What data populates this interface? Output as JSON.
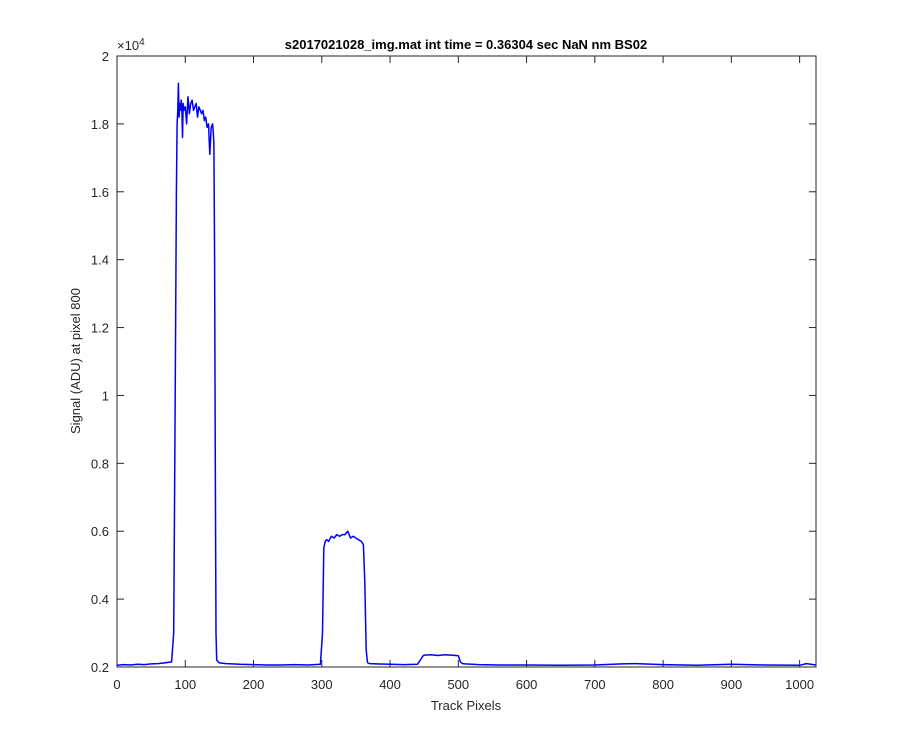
{
  "chart_data": {
    "type": "line",
    "title": "s2017021028_img.mat int time = 0.36304 sec  NaN nm BS02",
    "xlabel": "Track Pixels",
    "ylabel": "Signal (ADU) at pixel 800",
    "y_multiplier_label": "×10",
    "y_multiplier_exponent": "4",
    "xlim": [
      0,
      1024
    ],
    "ylim": [
      0.2,
      2.0
    ],
    "y_scale_note": "values in units of 10^4 ADU",
    "x_ticks": [
      0,
      100,
      200,
      300,
      400,
      500,
      600,
      700,
      800,
      900,
      1000
    ],
    "y_ticks": [
      0.2,
      0.4,
      0.6,
      0.8,
      1.0,
      1.2,
      1.4,
      1.6,
      1.8,
      2.0
    ],
    "y_tick_labels": [
      "0.2",
      "0.4",
      "0.6",
      "0.8",
      "1",
      "1.2",
      "1.4",
      "1.6",
      "1.8",
      "2"
    ],
    "grid": false,
    "line_color": "#0000ff",
    "series": [
      {
        "x": [
          0,
          10,
          20,
          30,
          40,
          50,
          60,
          70,
          80,
          83,
          85,
          87,
          88,
          89,
          90,
          91,
          92,
          93,
          94,
          95,
          96,
          97,
          98,
          100,
          102,
          104,
          106,
          108,
          110,
          112,
          114,
          116,
          118,
          120,
          122,
          124,
          126,
          128,
          130,
          132,
          134,
          136,
          138,
          140,
          141,
          142,
          143,
          144,
          145,
          146,
          150,
          160,
          180,
          200,
          220,
          240,
          260,
          280,
          298,
          301,
          303,
          305,
          307,
          310,
          314,
          318,
          322,
          326,
          330,
          334,
          338,
          342,
          346,
          350,
          354,
          358,
          361,
          363,
          365,
          367,
          370,
          380,
          400,
          420,
          440,
          446,
          448,
          450,
          460,
          470,
          480,
          490,
          500,
          503,
          506,
          510,
          530,
          560,
          600,
          650,
          700,
          740,
          760,
          800,
          850,
          900,
          950,
          1000,
          1010,
          1024
        ],
        "y": [
          0.205,
          0.207,
          0.206,
          0.208,
          0.207,
          0.209,
          0.21,
          0.212,
          0.215,
          0.3,
          0.9,
          1.6,
          1.8,
          1.84,
          1.92,
          1.82,
          1.86,
          1.84,
          1.87,
          1.85,
          1.76,
          1.86,
          1.84,
          1.85,
          1.8,
          1.88,
          1.83,
          1.86,
          1.87,
          1.84,
          1.85,
          1.86,
          1.82,
          1.85,
          1.84,
          1.83,
          1.84,
          1.81,
          1.82,
          1.79,
          1.8,
          1.71,
          1.79,
          1.8,
          1.78,
          1.74,
          1.4,
          0.8,
          0.3,
          0.22,
          0.212,
          0.21,
          0.208,
          0.207,
          0.206,
          0.206,
          0.207,
          0.206,
          0.208,
          0.3,
          0.55,
          0.57,
          0.575,
          0.57,
          0.585,
          0.58,
          0.59,
          0.585,
          0.59,
          0.59,
          0.6,
          0.58,
          0.585,
          0.58,
          0.575,
          0.57,
          0.56,
          0.45,
          0.25,
          0.213,
          0.21,
          0.209,
          0.208,
          0.207,
          0.208,
          0.225,
          0.232,
          0.235,
          0.236,
          0.234,
          0.236,
          0.235,
          0.233,
          0.215,
          0.21,
          0.209,
          0.207,
          0.206,
          0.206,
          0.205,
          0.206,
          0.209,
          0.21,
          0.207,
          0.205,
          0.208,
          0.206,
          0.205,
          0.21,
          0.206
        ]
      }
    ]
  }
}
